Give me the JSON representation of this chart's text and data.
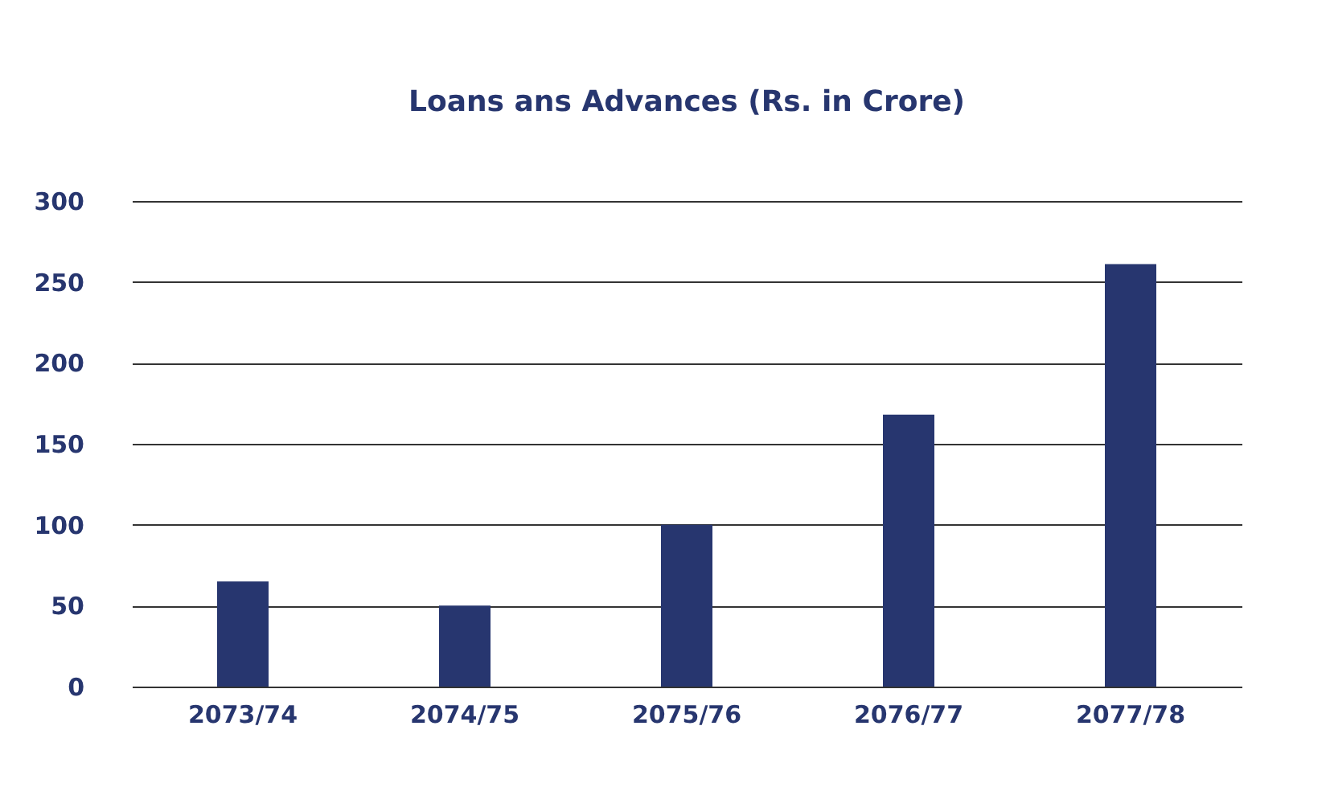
{
  "chart_data": {
    "type": "bar",
    "title": "Loans ans Advances (Rs. in Crore)",
    "categories": [
      "2073/74",
      "2074/75",
      "2075/76",
      "2076/77",
      "2077/78"
    ],
    "values": [
      65,
      50,
      100,
      168,
      261
    ],
    "color": "#27366f",
    "ylim": [
      0,
      300
    ],
    "yticks": [
      0,
      50,
      100,
      150,
      200,
      250,
      300
    ],
    "grid": "y"
  }
}
